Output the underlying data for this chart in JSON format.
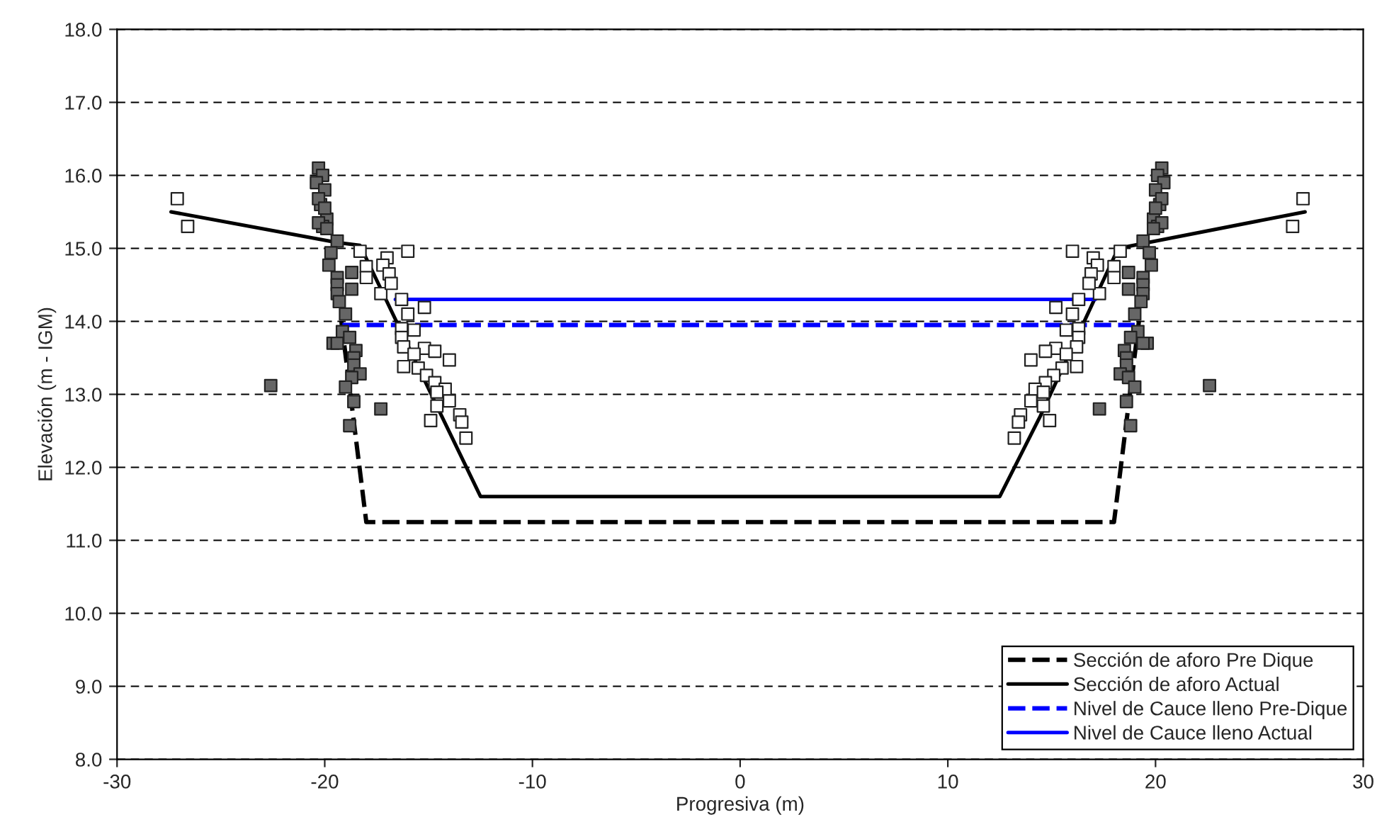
{
  "chart_data": {
    "type": "line",
    "xlabel": "Progresiva (m)",
    "ylabel": "Elevación (m - IGM)",
    "xlim": [
      -30,
      30
    ],
    "xticks": [
      -30,
      -20,
      -10,
      0,
      10,
      20,
      30
    ],
    "ylim": [
      8,
      18
    ],
    "yticks": [
      {
        "value": 8,
        "label": "8.0"
      },
      {
        "value": 9,
        "label": "9.0"
      },
      {
        "value": 10,
        "label": "10.0"
      },
      {
        "value": 11,
        "label": "11.0"
      },
      {
        "value": 12,
        "label": "12.0"
      },
      {
        "value": 13,
        "label": "13.0"
      },
      {
        "value": 14,
        "label": "14.0"
      },
      {
        "value": 15,
        "label": "15.0"
      },
      {
        "value": 16,
        "label": "16.0"
      },
      {
        "value": 17,
        "label": "17.0"
      },
      {
        "value": 18,
        "label": "18.0"
      }
    ],
    "grid": "y",
    "legend": "bottom right",
    "series": [
      {
        "type": "scatter",
        "marker": "square",
        "color": "#666666",
        "x": [
          -20.3,
          -20.1,
          -20.4,
          -20.0,
          -20.2,
          -19.9,
          -20.1,
          -20.3,
          -20.0,
          -20.3,
          -19.9,
          -19.4,
          -19.7,
          -19.8,
          -18.7,
          -19.4,
          -19.4,
          -18.7,
          -19.4,
          -19.3,
          -19.0,
          -19.15,
          -19.6,
          -19.4,
          -18.8,
          -18.5,
          -18.6,
          -18.6,
          -18.3,
          -18.7,
          -19.0,
          -22.6,
          -18.6,
          -17.3,
          -18.8,
          20.3,
          20.1,
          20.4,
          20.0,
          20.2,
          19.9,
          20.1,
          20.3,
          20.0,
          20.3,
          19.9,
          19.4,
          19.7,
          19.8,
          18.7,
          19.4,
          19.4,
          18.7,
          19.4,
          19.3,
          19.0,
          19.15,
          19.6,
          19.4,
          18.8,
          18.5,
          18.6,
          18.6,
          18.3,
          18.7,
          19.0,
          22.6,
          18.6,
          17.3,
          18.8
        ],
        "values": [
          16.1,
          16.0,
          15.9,
          15.8,
          15.6,
          15.4,
          15.3,
          15.68,
          15.55,
          15.35,
          15.27,
          15.1,
          14.94,
          14.77,
          14.67,
          14.6,
          14.5,
          14.44,
          14.38,
          14.27,
          14.1,
          13.86,
          13.7,
          13.7,
          13.78,
          13.6,
          13.5,
          13.4,
          13.28,
          13.23,
          13.1,
          13.12,
          12.9,
          12.8,
          12.57,
          16.1,
          16.0,
          15.9,
          15.8,
          15.6,
          15.4,
          15.3,
          15.68,
          15.55,
          15.35,
          15.27,
          15.1,
          14.94,
          14.77,
          14.67,
          14.6,
          14.5,
          14.44,
          14.38,
          14.27,
          14.1,
          13.86,
          13.7,
          13.7,
          13.78,
          13.6,
          13.5,
          13.4,
          13.28,
          13.23,
          13.1,
          13.12,
          12.9,
          12.8,
          12.57
        ]
      },
      {
        "type": "scatter",
        "marker": "square",
        "color": "#ffffff",
        "x": [
          -27.1,
          -26.6,
          -16.0,
          -18.3,
          -17.0,
          -18.0,
          -17.2,
          -16.9,
          -18.0,
          -17.3,
          -16.8,
          -16.3,
          -15.2,
          -16.0,
          -16.3,
          -15.7,
          -16.3,
          -15.2,
          -14.7,
          -16.2,
          -15.7,
          -16.2,
          -14.0,
          -15.5,
          -15.1,
          -14.7,
          -14.2,
          -14.6,
          -14.0,
          -14.6,
          -13.5,
          -14.9,
          -13.4,
          -13.2,
          27.1,
          26.6,
          16.0,
          18.3,
          17.0,
          18.0,
          17.2,
          16.9,
          18.0,
          17.3,
          16.8,
          16.3,
          15.2,
          16.0,
          16.3,
          15.7,
          16.3,
          15.2,
          14.7,
          16.2,
          15.7,
          16.2,
          14.0,
          15.5,
          15.1,
          14.7,
          14.2,
          14.6,
          14.0,
          14.6,
          13.5,
          14.9,
          13.4,
          13.2
        ],
        "values": [
          15.68,
          15.3,
          14.96,
          14.96,
          14.87,
          14.75,
          14.77,
          14.65,
          14.6,
          14.38,
          14.52,
          14.3,
          14.19,
          14.1,
          13.9,
          13.88,
          13.78,
          13.63,
          13.59,
          13.65,
          13.55,
          13.38,
          13.47,
          13.36,
          13.26,
          13.16,
          13.07,
          13.03,
          12.91,
          12.84,
          12.72,
          12.64,
          12.62,
          12.4,
          15.68,
          15.3,
          14.96,
          14.96,
          14.87,
          14.75,
          14.77,
          14.65,
          14.6,
          14.38,
          14.52,
          14.3,
          14.19,
          14.1,
          13.9,
          13.88,
          13.78,
          13.63,
          13.59,
          13.65,
          13.55,
          13.38,
          13.47,
          13.36,
          13.26,
          13.16,
          13.07,
          13.03,
          12.91,
          12.84,
          12.72,
          12.64,
          12.62,
          12.4
        ]
      },
      {
        "name": "Sección de aforo Pre Dique",
        "line_style": "dashed",
        "marker": "none",
        "color": "#000000",
        "x": [
          -19.2,
          -18.0,
          18.0,
          19.2
        ],
        "values": [
          14.0,
          11.25,
          11.25,
          14.0
        ]
      },
      {
        "name": "Sección de aforo Actual",
        "line_style": "solid",
        "marker": "none",
        "color": "#000000",
        "x": [
          -27.4,
          -19.4,
          -18.3,
          -14.4,
          -12.5,
          12.5,
          14.45,
          18.2,
          27.2
        ],
        "values": [
          15.5,
          15.08,
          15.04,
          12.72,
          11.6,
          11.6,
          12.7,
          15.0,
          15.5
        ]
      },
      {
        "name": "Nivel de Cauce lleno Pre-Dique",
        "line_style": "dashed",
        "marker": "none",
        "color": "#0000ff",
        "x": [
          -19.15,
          19.0
        ],
        "values": [
          13.95,
          13.95
        ]
      },
      {
        "name": "Nivel de Cauce lleno Actual",
        "line_style": "solid",
        "marker": "none",
        "color": "#0000ff",
        "x": [
          -16.6,
          17.1
        ],
        "values": [
          14.3,
          14.3
        ]
      }
    ]
  }
}
